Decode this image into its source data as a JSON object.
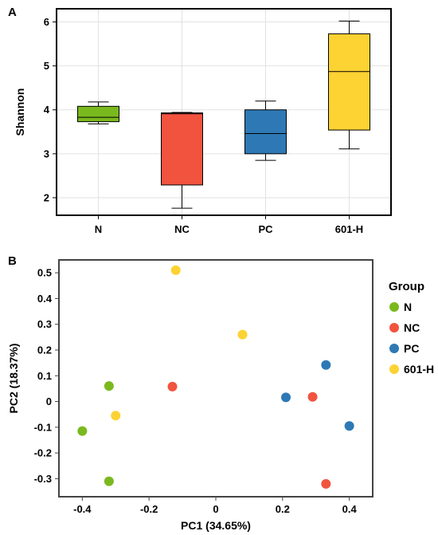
{
  "chart_data": [
    {
      "panel": "A",
      "type": "box",
      "ylabel": "Shannon",
      "xlabel": "",
      "ylim": [
        1.6,
        6.3
      ],
      "yticks": [
        "2",
        "3",
        "4",
        "5",
        "6"
      ],
      "categories": [
        "N",
        "NC",
        "PC",
        "601-H"
      ],
      "boxes": [
        {
          "name": "N",
          "min": 3.68,
          "q1": 3.73,
          "median": 3.83,
          "q3": 4.08,
          "max": 4.18,
          "color": "#7ab91e"
        },
        {
          "name": "NC",
          "min": 1.76,
          "q1": 2.29,
          "median": 3.91,
          "q3": 3.93,
          "max": 3.94,
          "color": "#f1533f"
        },
        {
          "name": "PC",
          "min": 2.85,
          "q1": 3.0,
          "median": 3.46,
          "q3": 4.0,
          "max": 4.2,
          "color": "#2e79b5"
        },
        {
          "name": "601-H",
          "min": 3.11,
          "q1": 3.54,
          "median": 4.87,
          "q3": 5.73,
          "max": 6.02,
          "color": "#fdd233"
        }
      ],
      "grid": true
    },
    {
      "panel": "B",
      "type": "scatter",
      "xlabel": "PC1 (34.65%)",
      "ylabel": "PC2 (18.37%)",
      "xlim": [
        -0.47,
        0.47
      ],
      "ylim": [
        -0.37,
        0.55
      ],
      "xticks": [
        "-0.4",
        "-0.2",
        "0",
        "0.2",
        "0.4"
      ],
      "yticks": [
        "-0.3",
        "-0.2",
        "-0.1",
        "0",
        "0.1",
        "0.2",
        "0.3",
        "0.4",
        "0.5"
      ],
      "legend_title": "Group",
      "legend_position": "right",
      "series": [
        {
          "name": "N",
          "color": "#7ab91e",
          "points": [
            [
              -0.32,
              0.06
            ],
            [
              -0.4,
              -0.115
            ],
            [
              -0.32,
              -0.31
            ]
          ]
        },
        {
          "name": "NC",
          "color": "#f1533f",
          "points": [
            [
              -0.13,
              0.058
            ],
            [
              0.29,
              0.018
            ],
            [
              0.33,
              -0.32
            ]
          ]
        },
        {
          "name": "PC",
          "color": "#2e79b5",
          "points": [
            [
              0.21,
              0.016
            ],
            [
              0.33,
              0.142
            ],
            [
              0.4,
              -0.095
            ]
          ]
        },
        {
          "name": "601-H",
          "color": "#fdd233",
          "points": [
            [
              -0.12,
              0.51
            ],
            [
              -0.3,
              -0.055
            ],
            [
              0.08,
              0.26
            ]
          ]
        }
      ],
      "grid": false
    }
  ]
}
